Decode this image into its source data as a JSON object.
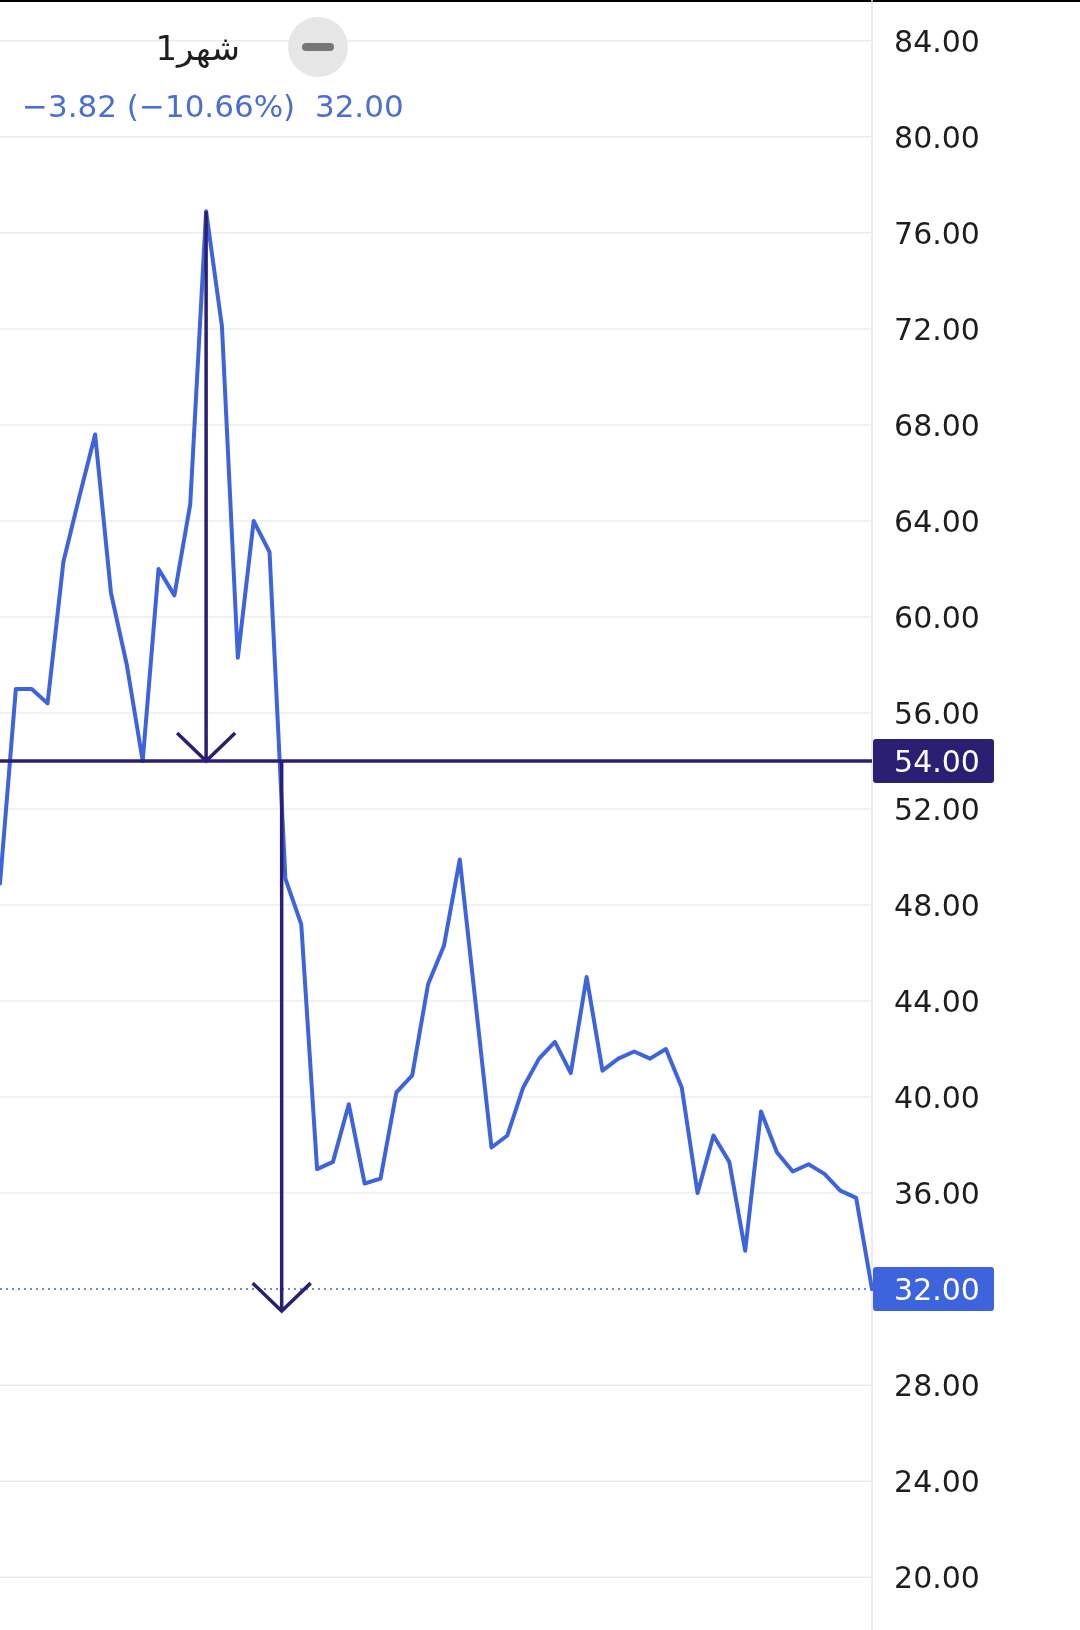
{
  "chart_data": {
    "type": "line",
    "title": "1شهر",
    "subtitle": "−3.82 (−10.66%)  32.00",
    "categories": [
      null,
      null,
      null,
      null,
      null,
      null,
      null,
      null,
      null,
      null,
      null,
      null,
      null,
      null,
      null,
      null,
      null,
      null,
      null,
      null,
      null,
      null,
      null,
      null,
      null,
      null,
      null,
      null,
      null,
      null,
      null,
      null,
      null,
      null,
      null,
      null,
      null,
      null,
      null,
      null,
      null,
      null,
      null,
      null,
      null,
      null,
      null,
      null,
      null,
      null,
      null,
      null,
      null,
      null,
      null,
      null
    ],
    "series": [
      {
        "color": "#3d63dd",
        "values": [
          48.9,
          57.0,
          57.0,
          56.4,
          62.3,
          65.0,
          67.6,
          61.0,
          58.0,
          54.0,
          62.0,
          60.9,
          64.7,
          76.9,
          72.1,
          58.3,
          64.0,
          62.7,
          49.1,
          47.2,
          37.0,
          37.3,
          39.7,
          36.4,
          36.6,
          40.2,
          40.9,
          44.7,
          46.3,
          49.9,
          43.9,
          37.9,
          38.4,
          40.4,
          41.6,
          42.3,
          41.0,
          45.0,
          41.1,
          41.6,
          41.9,
          41.6,
          42.0,
          40.4,
          36.0,
          38.4,
          37.3,
          33.6,
          39.4,
          37.7,
          36.9,
          37.2,
          36.8,
          36.1,
          35.8,
          32.0
        ]
      }
    ],
    "ylim": [
      17.8,
      85.7
    ],
    "yticks": [
      {
        "value": 20,
        "label": "20.00"
      },
      {
        "value": 24,
        "label": "24.00"
      },
      {
        "value": 28,
        "label": "28.00"
      },
      {
        "value": 36,
        "label": "36.00"
      },
      {
        "value": 40,
        "label": "40.00"
      },
      {
        "value": 44,
        "label": "44.00"
      },
      {
        "value": 48,
        "label": "48.00"
      },
      {
        "value": 52,
        "label": "52.00"
      },
      {
        "value": 56,
        "label": "56.00"
      },
      {
        "value": 60,
        "label": "60.00"
      },
      {
        "value": 64,
        "label": "64.00"
      },
      {
        "value": 68,
        "label": "68.00"
      },
      {
        "value": 72,
        "label": "72.00"
      },
      {
        "value": 76,
        "label": "76.00"
      },
      {
        "value": 80,
        "label": "80.00"
      },
      {
        "value": 84,
        "label": "84.00"
      }
    ],
    "ref_lines": [
      {
        "axis": "y",
        "value": 54,
        "label": "54.00",
        "color": "#2a1f73",
        "line_style": "solid"
      },
      {
        "axis": "y",
        "value": 32,
        "label": "32.00",
        "color": "#3d63dd",
        "line_style": "dotted"
      }
    ],
    "grid": "y",
    "tick_labels": "y"
  }
}
